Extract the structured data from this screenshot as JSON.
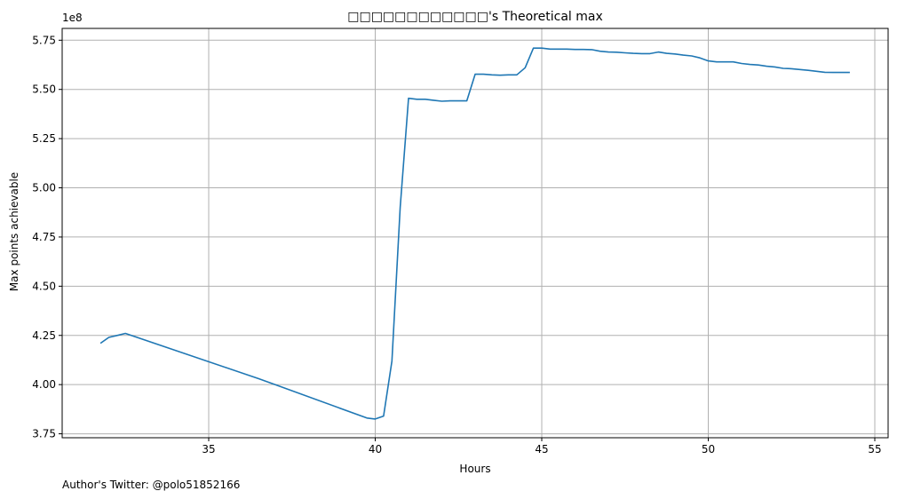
{
  "chart_data": {
    "type": "line",
    "title": "□□□□□□□□□□□□'s Theoretical max",
    "xlabel": "Hours",
    "ylabel": "Max points achievable",
    "y_offset_label": "1e8",
    "xlim": [
      30.6,
      55.4
    ],
    "ylim": [
      3.73,
      5.81
    ],
    "x_ticks": [
      35,
      40,
      45,
      50,
      55
    ],
    "y_ticks": [
      3.75,
      4.0,
      4.25,
      4.5,
      4.75,
      5.0,
      5.25,
      5.5,
      5.75
    ],
    "grid": true,
    "line_color": "#1f77b4",
    "series": [
      {
        "x": [
          31.75,
          32.0,
          32.25,
          32.5,
          36.5,
          37.0,
          39.75,
          40.0,
          40.25,
          40.5,
          40.75,
          41.0,
          41.25,
          41.5,
          41.75,
          42.0,
          42.25,
          42.5,
          42.75,
          43.0,
          43.25,
          43.5,
          43.75,
          44.0,
          44.25,
          44.5,
          44.75,
          45.0,
          45.25,
          45.5,
          45.75,
          46.0,
          46.25,
          46.5,
          46.75,
          47.0,
          47.25,
          47.5,
          47.75,
          48.0,
          48.25,
          48.5,
          48.75,
          49.0,
          49.25,
          49.5,
          49.75,
          50.0,
          50.25,
          50.5,
          50.75,
          51.0,
          51.25,
          51.5,
          51.75,
          52.0,
          52.25,
          52.5,
          52.75,
          53.0,
          53.25,
          53.5,
          53.75,
          54.0,
          54.25
        ],
        "y": [
          4.21,
          4.24,
          4.25,
          4.26,
          4.03,
          4.0,
          3.83,
          3.825,
          3.84,
          4.12,
          4.9,
          5.455,
          5.45,
          5.45,
          5.445,
          5.44,
          5.442,
          5.442,
          5.442,
          5.577,
          5.577,
          5.574,
          5.572,
          5.574,
          5.574,
          5.61,
          5.71,
          5.71,
          5.705,
          5.705,
          5.705,
          5.703,
          5.703,
          5.702,
          5.694,
          5.69,
          5.689,
          5.686,
          5.683,
          5.682,
          5.682,
          5.69,
          5.683,
          5.68,
          5.674,
          5.67,
          5.66,
          5.645,
          5.64,
          5.64,
          5.64,
          5.632,
          5.627,
          5.624,
          5.618,
          5.614,
          5.607,
          5.605,
          5.601,
          5.597,
          5.592,
          5.587,
          5.586,
          5.586,
          5.586
        ]
      }
    ]
  },
  "footer": {
    "text": "Author's Twitter: @polo51852166"
  }
}
